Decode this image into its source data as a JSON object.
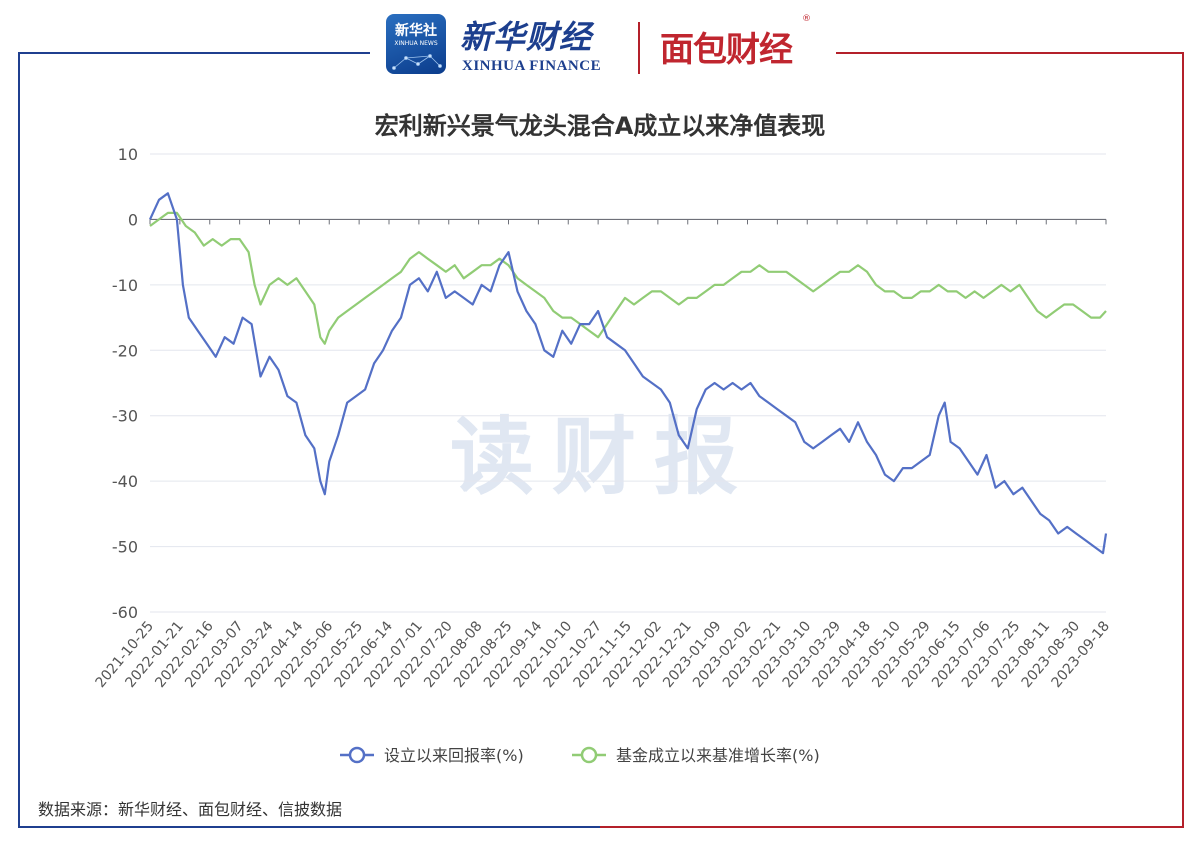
{
  "header": {
    "xinhua_box_cn": "新华社",
    "xinhua_box_en": "XINHUA NEWS",
    "xinhua_finance_cn": "新华财经",
    "xinhua_finance_en": "XINHUA FINANCE",
    "mianbao_logo": "面包财经",
    "registered_mark": "®"
  },
  "watermark": "读财报",
  "source_note": "数据来源：新华财经、面包财经、信披数据",
  "colors": {
    "series1": "#5470c6",
    "series2": "#91cc75",
    "frame_blue": "#1f3f8f",
    "frame_red": "#b4202a"
  },
  "chart_data": {
    "type": "line",
    "title": "宏利新兴景气龙头混合A成立以来净值表现",
    "xlabel": "",
    "ylabel": "",
    "ylim": [
      -60,
      10
    ],
    "yticks": [
      10,
      0,
      -10,
      -20,
      -30,
      -40,
      -50,
      -60
    ],
    "x_tick_labels": [
      "2021-10-25",
      "2022-01-21",
      "2022-02-16",
      "2022-03-07",
      "2022-03-24",
      "2022-04-14",
      "2022-05-06",
      "2022-05-25",
      "2022-06-14",
      "2022-07-01",
      "2022-07-20",
      "2022-08-08",
      "2022-08-25",
      "2022-09-14",
      "2022-10-10",
      "2022-10-27",
      "2022-11-15",
      "2022-12-02",
      "2022-12-21",
      "2023-01-09",
      "2023-02-02",
      "2023-02-21",
      "2023-03-10",
      "2023-03-29",
      "2023-04-18",
      "2023-05-10",
      "2023-05-29",
      "2023-06-15",
      "2023-07-06",
      "2023-07-25",
      "2023-08-11",
      "2023-08-30",
      "2023-09-18"
    ],
    "grid": true,
    "legend_position": "bottom",
    "series": [
      {
        "name": "设立以来回报率(%)",
        "points": [
          [
            0,
            0
          ],
          [
            0.3,
            3
          ],
          [
            0.6,
            4
          ],
          [
            0.9,
            0
          ],
          [
            1.1,
            -10
          ],
          [
            1.3,
            -15
          ],
          [
            1.6,
            -17
          ],
          [
            1.9,
            -19
          ],
          [
            2.2,
            -21
          ],
          [
            2.5,
            -18
          ],
          [
            2.8,
            -19
          ],
          [
            3.1,
            -15
          ],
          [
            3.4,
            -16
          ],
          [
            3.7,
            -24
          ],
          [
            4.0,
            -21
          ],
          [
            4.3,
            -23
          ],
          [
            4.6,
            -27
          ],
          [
            4.9,
            -28
          ],
          [
            5.2,
            -33
          ],
          [
            5.5,
            -35
          ],
          [
            5.7,
            -40
          ],
          [
            5.85,
            -42
          ],
          [
            6.0,
            -37
          ],
          [
            6.3,
            -33
          ],
          [
            6.6,
            -28
          ],
          [
            6.9,
            -27
          ],
          [
            7.2,
            -26
          ],
          [
            7.5,
            -22
          ],
          [
            7.8,
            -20
          ],
          [
            8.1,
            -17
          ],
          [
            8.4,
            -15
          ],
          [
            8.7,
            -10
          ],
          [
            9.0,
            -9
          ],
          [
            9.3,
            -11
          ],
          [
            9.6,
            -8
          ],
          [
            9.9,
            -12
          ],
          [
            10.2,
            -11
          ],
          [
            10.5,
            -12
          ],
          [
            10.8,
            -13
          ],
          [
            11.1,
            -10
          ],
          [
            11.4,
            -11
          ],
          [
            11.7,
            -7
          ],
          [
            12.0,
            -5
          ],
          [
            12.3,
            -11
          ],
          [
            12.6,
            -14
          ],
          [
            12.9,
            -16
          ],
          [
            13.2,
            -20
          ],
          [
            13.5,
            -21
          ],
          [
            13.8,
            -17
          ],
          [
            14.1,
            -19
          ],
          [
            14.4,
            -16
          ],
          [
            14.7,
            -16
          ],
          [
            15.0,
            -14
          ],
          [
            15.3,
            -18
          ],
          [
            15.6,
            -19
          ],
          [
            15.9,
            -20
          ],
          [
            16.2,
            -22
          ],
          [
            16.5,
            -24
          ],
          [
            16.8,
            -25
          ],
          [
            17.1,
            -26
          ],
          [
            17.4,
            -28
          ],
          [
            17.7,
            -33
          ],
          [
            18.0,
            -35
          ],
          [
            18.3,
            -29
          ],
          [
            18.6,
            -26
          ],
          [
            18.9,
            -25
          ],
          [
            19.2,
            -26
          ],
          [
            19.5,
            -25
          ],
          [
            19.8,
            -26
          ],
          [
            20.1,
            -25
          ],
          [
            20.4,
            -27
          ],
          [
            20.7,
            -28
          ],
          [
            21.0,
            -29
          ],
          [
            21.3,
            -30
          ],
          [
            21.6,
            -31
          ],
          [
            21.9,
            -34
          ],
          [
            22.2,
            -35
          ],
          [
            22.5,
            -34
          ],
          [
            22.8,
            -33
          ],
          [
            23.1,
            -32
          ],
          [
            23.4,
            -34
          ],
          [
            23.7,
            -31
          ],
          [
            24.0,
            -34
          ],
          [
            24.3,
            -36
          ],
          [
            24.6,
            -39
          ],
          [
            24.9,
            -40
          ],
          [
            25.2,
            -38
          ],
          [
            25.5,
            -38
          ],
          [
            25.8,
            -37
          ],
          [
            26.1,
            -36
          ],
          [
            26.4,
            -30
          ],
          [
            26.6,
            -28
          ],
          [
            26.8,
            -34
          ],
          [
            27.1,
            -35
          ],
          [
            27.4,
            -37
          ],
          [
            27.7,
            -39
          ],
          [
            28.0,
            -36
          ],
          [
            28.3,
            -41
          ],
          [
            28.6,
            -40
          ],
          [
            28.9,
            -42
          ],
          [
            29.2,
            -41
          ],
          [
            29.5,
            -43
          ],
          [
            29.8,
            -45
          ],
          [
            30.1,
            -46
          ],
          [
            30.4,
            -48
          ],
          [
            30.7,
            -47
          ],
          [
            31.0,
            -48
          ],
          [
            31.3,
            -49
          ],
          [
            31.6,
            -50
          ],
          [
            31.9,
            -51
          ],
          [
            32.0,
            -48
          ]
        ]
      },
      {
        "name": "基金成立以来基准增长率(%)",
        "points": [
          [
            0,
            -1
          ],
          [
            0.3,
            0
          ],
          [
            0.6,
            1
          ],
          [
            0.9,
            1
          ],
          [
            1.2,
            -1
          ],
          [
            1.5,
            -2
          ],
          [
            1.8,
            -4
          ],
          [
            2.1,
            -3
          ],
          [
            2.4,
            -4
          ],
          [
            2.7,
            -3
          ],
          [
            3.0,
            -3
          ],
          [
            3.3,
            -5
          ],
          [
            3.5,
            -10
          ],
          [
            3.7,
            -13
          ],
          [
            4.0,
            -10
          ],
          [
            4.3,
            -9
          ],
          [
            4.6,
            -10
          ],
          [
            4.9,
            -9
          ],
          [
            5.2,
            -11
          ],
          [
            5.5,
            -13
          ],
          [
            5.7,
            -18
          ],
          [
            5.85,
            -19
          ],
          [
            6.0,
            -17
          ],
          [
            6.3,
            -15
          ],
          [
            6.6,
            -14
          ],
          [
            6.9,
            -13
          ],
          [
            7.2,
            -12
          ],
          [
            7.5,
            -11
          ],
          [
            7.8,
            -10
          ],
          [
            8.1,
            -9
          ],
          [
            8.4,
            -8
          ],
          [
            8.7,
            -6
          ],
          [
            9.0,
            -5
          ],
          [
            9.3,
            -6
          ],
          [
            9.6,
            -7
          ],
          [
            9.9,
            -8
          ],
          [
            10.2,
            -7
          ],
          [
            10.5,
            -9
          ],
          [
            10.8,
            -8
          ],
          [
            11.1,
            -7
          ],
          [
            11.4,
            -7
          ],
          [
            11.7,
            -6
          ],
          [
            12.0,
            -7
          ],
          [
            12.3,
            -9
          ],
          [
            12.6,
            -10
          ],
          [
            12.9,
            -11
          ],
          [
            13.2,
            -12
          ],
          [
            13.5,
            -14
          ],
          [
            13.8,
            -15
          ],
          [
            14.1,
            -15
          ],
          [
            14.4,
            -16
          ],
          [
            14.7,
            -17
          ],
          [
            15.0,
            -18
          ],
          [
            15.3,
            -16
          ],
          [
            15.6,
            -14
          ],
          [
            15.9,
            -12
          ],
          [
            16.2,
            -13
          ],
          [
            16.5,
            -12
          ],
          [
            16.8,
            -11
          ],
          [
            17.1,
            -11
          ],
          [
            17.4,
            -12
          ],
          [
            17.7,
            -13
          ],
          [
            18.0,
            -12
          ],
          [
            18.3,
            -12
          ],
          [
            18.6,
            -11
          ],
          [
            18.9,
            -10
          ],
          [
            19.2,
            -10
          ],
          [
            19.5,
            -9
          ],
          [
            19.8,
            -8
          ],
          [
            20.1,
            -8
          ],
          [
            20.4,
            -7
          ],
          [
            20.7,
            -8
          ],
          [
            21.0,
            -8
          ],
          [
            21.3,
            -8
          ],
          [
            21.6,
            -9
          ],
          [
            21.9,
            -10
          ],
          [
            22.2,
            -11
          ],
          [
            22.5,
            -10
          ],
          [
            22.8,
            -9
          ],
          [
            23.1,
            -8
          ],
          [
            23.4,
            -8
          ],
          [
            23.7,
            -7
          ],
          [
            24.0,
            -8
          ],
          [
            24.3,
            -10
          ],
          [
            24.6,
            -11
          ],
          [
            24.9,
            -11
          ],
          [
            25.2,
            -12
          ],
          [
            25.5,
            -12
          ],
          [
            25.8,
            -11
          ],
          [
            26.1,
            -11
          ],
          [
            26.4,
            -10
          ],
          [
            26.7,
            -11
          ],
          [
            27.0,
            -11
          ],
          [
            27.3,
            -12
          ],
          [
            27.6,
            -11
          ],
          [
            27.9,
            -12
          ],
          [
            28.2,
            -11
          ],
          [
            28.5,
            -10
          ],
          [
            28.8,
            -11
          ],
          [
            29.1,
            -10
          ],
          [
            29.4,
            -12
          ],
          [
            29.7,
            -14
          ],
          [
            30.0,
            -15
          ],
          [
            30.3,
            -14
          ],
          [
            30.6,
            -13
          ],
          [
            30.9,
            -13
          ],
          [
            31.2,
            -14
          ],
          [
            31.5,
            -15
          ],
          [
            31.8,
            -15
          ],
          [
            32.0,
            -14
          ]
        ]
      }
    ]
  }
}
